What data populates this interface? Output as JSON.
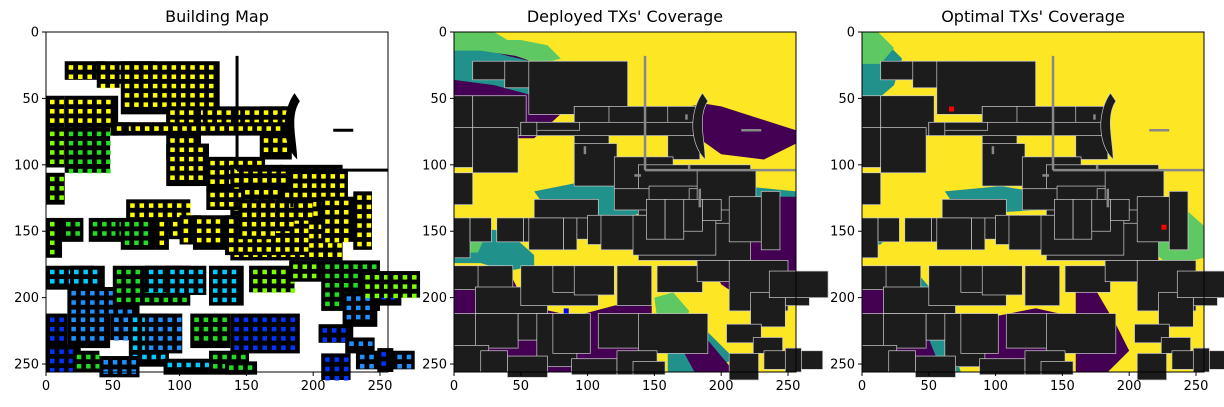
{
  "colors": {
    "building": "#000000",
    "b_light": "#ffff00",
    "b_lime": "#80ff00",
    "b_green": "#22dd22",
    "b_cyan": "#00ccff",
    "b_azure": "#1e90ff",
    "b_blue": "#0033ff",
    "cov_yellow": "#fde725",
    "cov_green": "#5ec962",
    "cov_teal": "#21918c",
    "cov_purple": "#440154",
    "cov_building": "#1c1c1c",
    "tx_deployed": "#0000ff",
    "tx_optimal": "#ff0000"
  },
  "chart_data": [
    {
      "type": "heatmap",
      "title": "Building Map",
      "xlim": [
        0,
        256
      ],
      "ylim": [
        256,
        0
      ],
      "x_ticks": [
        0,
        50,
        100,
        150,
        200,
        250
      ],
      "y_ticks": [
        0,
        50,
        100,
        150,
        200,
        250
      ],
      "grid": false
    },
    {
      "type": "heatmap",
      "title": "Deployed TXs' Coverage",
      "xlim": [
        0,
        256
      ],
      "ylim": [
        256,
        0
      ],
      "x_ticks": [
        0,
        50,
        100,
        150,
        200,
        250
      ],
      "y_ticks": [
        0,
        50,
        100,
        150,
        200,
        250
      ],
      "grid": false,
      "transmitters": [
        [
          84,
          210
        ]
      ]
    },
    {
      "type": "heatmap",
      "title": "Optimal TXs' Coverage",
      "xlim": [
        0,
        256
      ],
      "ylim": [
        256,
        0
      ],
      "x_ticks": [
        0,
        50,
        100,
        150,
        200,
        250
      ],
      "y_ticks": [
        0,
        50,
        100,
        150,
        200,
        250
      ],
      "grid": false,
      "transmitters": [
        [
          67,
          58
        ],
        [
          226,
          147
        ]
      ]
    }
  ]
}
